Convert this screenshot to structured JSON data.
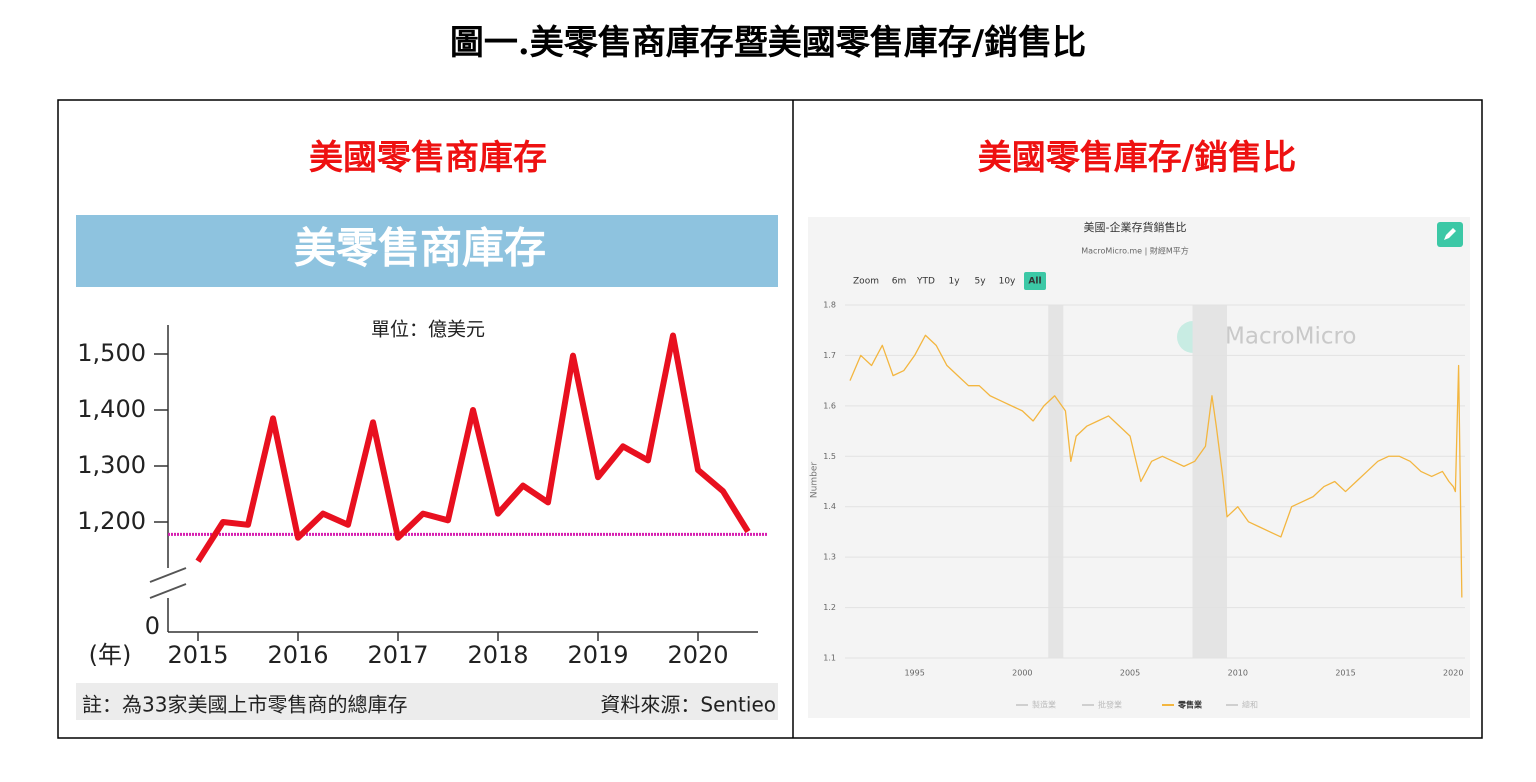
{
  "title": "圖一.美零售商庫存暨美國零售庫存/銷售比",
  "chart_data": [
    {
      "type": "line",
      "heading": "美國零售商庫存",
      "band_title": "美零售商庫存",
      "unit_label": "單位：億美元",
      "x_unit_label": "(年)",
      "note": "註：為33家美國上市零售商的總庫存",
      "source": "資料來源：Sentieo",
      "x": [
        2015,
        2015.25,
        2015.5,
        2015.75,
        2016,
        2016.25,
        2016.5,
        2016.75,
        2017,
        2017.25,
        2017.5,
        2017.75,
        2018,
        2018.25,
        2018.5,
        2018.75,
        2019,
        2019.25,
        2019.5,
        2019.75,
        2020,
        2020.25,
        2020.5
      ],
      "values": [
        1130,
        1200,
        1195,
        1385,
        1172,
        1215,
        1195,
        1378,
        1172,
        1215,
        1203,
        1400,
        1215,
        1265,
        1235,
        1497,
        1280,
        1335,
        1310,
        1533,
        1293,
        1255,
        1183
      ],
      "color": "#e8101f",
      "reference_line": {
        "value": 1178,
        "color": "#d61fb0"
      },
      "xlim": [
        2014.7,
        2020.6
      ],
      "xticks": [
        2015,
        2016,
        2017,
        2018,
        2019,
        2020
      ],
      "ylim": [
        1100,
        1560
      ],
      "axis_break": true,
      "yticks": [
        0,
        {
          "value": 1200,
          "label": "1,200"
        },
        {
          "value": 1300,
          "label": "1,300"
        },
        {
          "value": 1400,
          "label": "1,400"
        },
        {
          "value": 1500,
          "label": "1,500"
        }
      ]
    },
    {
      "type": "line",
      "heading": "美國零售庫存/銷售比",
      "title": "美國-企業存貨銷售比",
      "subtitle": "MacroMicro.me | 財經M平方",
      "watermark": "MacroMicro",
      "range_buttons": [
        "Zoom",
        "6m",
        "YTD",
        "1y",
        "5y",
        "10y",
        "All"
      ],
      "selected_button": "All",
      "y_axis_label": "Number",
      "series": [
        {
          "name": "零售業",
          "color": "#f3b640",
          "x": [
            1992,
            1992.5,
            1993,
            1993.5,
            1994,
            1994.5,
            1995,
            1995.5,
            1996,
            1996.5,
            1997,
            1997.5,
            1998,
            1998.5,
            1999,
            1999.5,
            2000,
            2000.5,
            2001,
            2001.5,
            2002,
            2002.25,
            2002.5,
            2003,
            2003.5,
            2004,
            2004.5,
            2005,
            2005.5,
            2006,
            2006.5,
            2007,
            2007.5,
            2008,
            2008.5,
            2008.8,
            2009,
            2009.3,
            2009.5,
            2010,
            2010.5,
            2011,
            2011.5,
            2012,
            2012.5,
            2013,
            2013.5,
            2014,
            2014.5,
            2015,
            2015.5,
            2016,
            2016.5,
            2017,
            2017.5,
            2018,
            2018.5,
            2019,
            2019.5,
            2019.8,
            2020,
            2020.1,
            2020.25,
            2020.4
          ],
          "values": [
            1.65,
            1.7,
            1.68,
            1.72,
            1.66,
            1.67,
            1.7,
            1.74,
            1.72,
            1.68,
            1.66,
            1.64,
            1.64,
            1.62,
            1.61,
            1.6,
            1.59,
            1.57,
            1.6,
            1.62,
            1.59,
            1.49,
            1.54,
            1.56,
            1.57,
            1.58,
            1.56,
            1.54,
            1.45,
            1.49,
            1.5,
            1.49,
            1.48,
            1.49,
            1.52,
            1.62,
            1.56,
            1.46,
            1.38,
            1.4,
            1.37,
            1.36,
            1.35,
            1.34,
            1.4,
            1.41,
            1.42,
            1.44,
            1.45,
            1.43,
            1.45,
            1.47,
            1.49,
            1.5,
            1.5,
            1.49,
            1.47,
            1.46,
            1.47,
            1.45,
            1.44,
            1.43,
            1.68,
            1.22
          ]
        }
      ],
      "legend_items": [
        {
          "name": "製造業",
          "active": false
        },
        {
          "name": "批發業",
          "active": false
        },
        {
          "name": "零售業",
          "active": true
        },
        {
          "name": "總和",
          "active": false
        }
      ],
      "shaded_ranges": [
        [
          2001.2,
          2001.9
        ],
        [
          2007.9,
          2009.5
        ]
      ],
      "xlim": [
        1992,
        2020.5
      ],
      "xticks": [
        1995,
        2000,
        2005,
        2010,
        2015,
        2020
      ],
      "ylim": [
        1.1,
        1.8
      ],
      "yticks": [
        1.1,
        1.2,
        1.3,
        1.4,
        1.5,
        1.6,
        1.7,
        1.8
      ],
      "grid": true
    }
  ]
}
